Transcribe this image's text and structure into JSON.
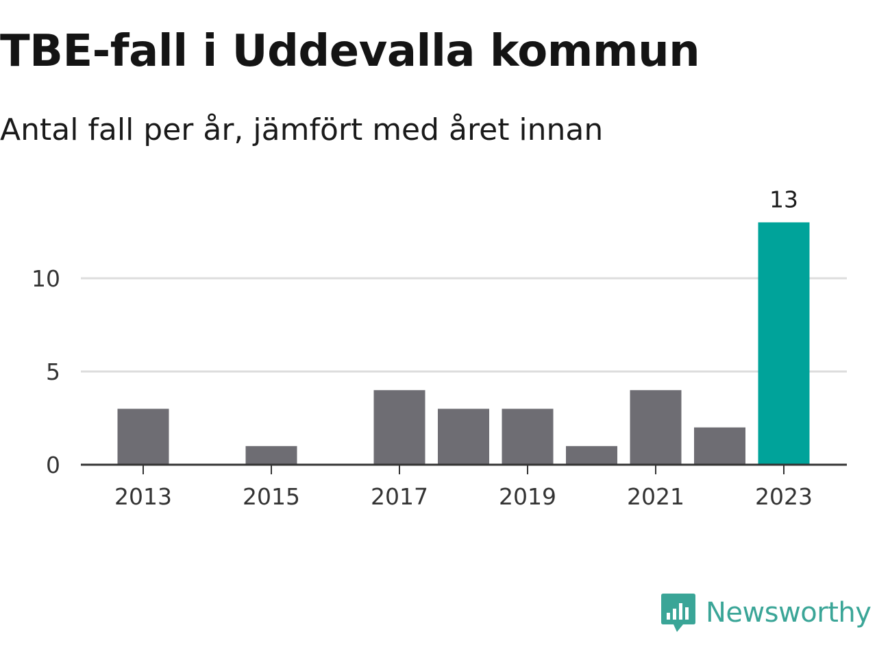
{
  "header": {
    "title": "TBE-fall i Uddevalla kommun",
    "subtitle": "Antal fall per år, jämfört med året innan"
  },
  "brand": {
    "name": "Newsworthy",
    "color": "#3aa597",
    "icon": "newsworthy-chat-bar-icon"
  },
  "colors": {
    "bar": "#6e6d73",
    "highlight": "#00a39a",
    "grid": "#dddddd",
    "axis": "#333333"
  },
  "chart_data": {
    "type": "bar",
    "title": "TBE-fall i Uddevalla kommun",
    "subtitle": "Antal fall per år, jämfört med året innan",
    "categories": [
      "2013",
      "2014",
      "2015",
      "2016",
      "2017",
      "2018",
      "2019",
      "2020",
      "2021",
      "2022",
      "2023"
    ],
    "values": [
      3,
      0,
      1,
      0,
      4,
      3,
      3,
      1,
      4,
      2,
      13
    ],
    "highlight": "2023",
    "value_labels": {
      "2023": "13"
    },
    "x_tick_labels": [
      "2013",
      "2015",
      "2017",
      "2019",
      "2021",
      "2023"
    ],
    "y_ticks": [
      0,
      5,
      10
    ],
    "xlabel": "",
    "ylabel": "",
    "ylim": [
      0,
      13
    ],
    "grid": true
  }
}
